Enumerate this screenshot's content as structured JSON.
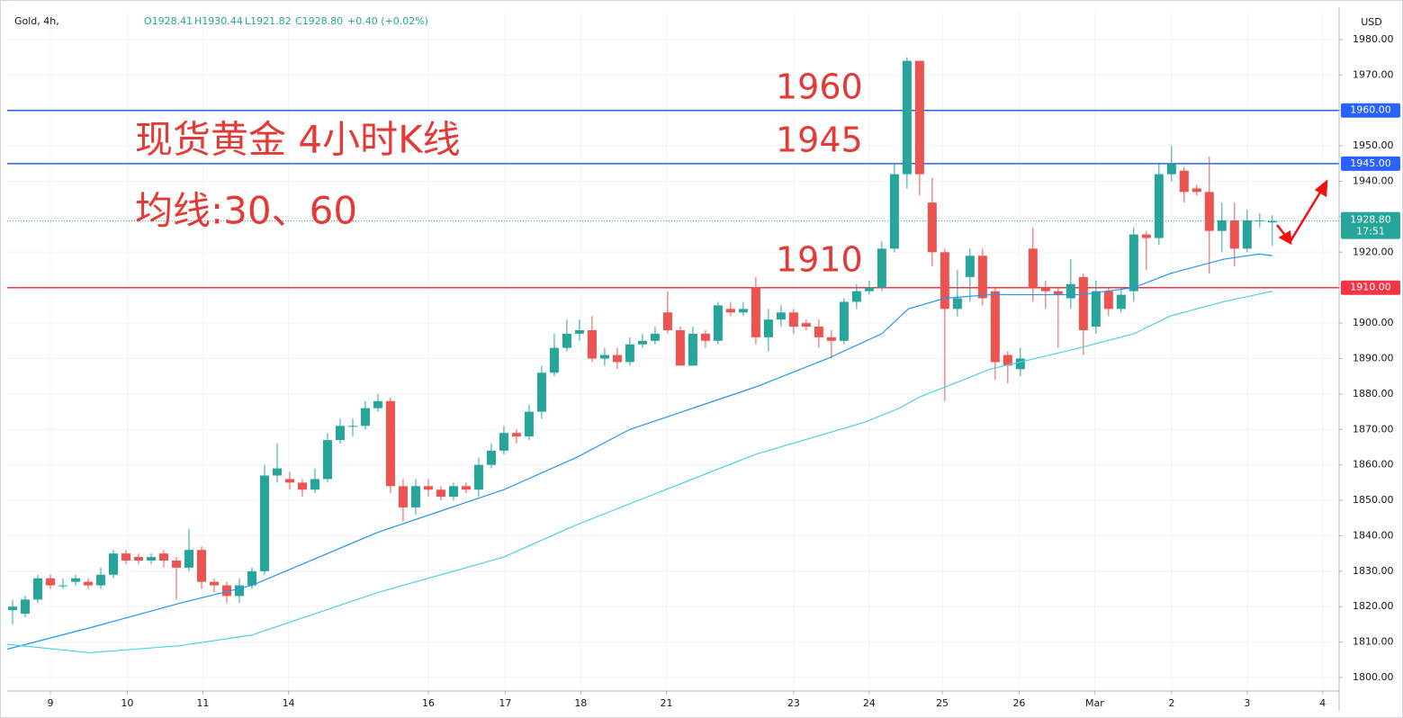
{
  "chart_data": {
    "type": "candlestick",
    "header": {
      "symbol": "Gold, 4h,",
      "open": "O1928.41",
      "high": "H1930.44",
      "low": "L1921.82",
      "close": "C1928.80",
      "change": "+0.40 (+0.02%)"
    },
    "currency": "USD",
    "annotations": [
      "现货黄金 4小时K线",
      "均线:30、60",
      "1960",
      "1945",
      "1910"
    ],
    "up_color": "#26a69a",
    "down_color": "#ef5350",
    "xlim": [
      -0.43,
      105.3
    ],
    "xticks": [
      {
        "value": 3,
        "label": "9"
      },
      {
        "value": 9.1,
        "label": "10"
      },
      {
        "value": 15.1,
        "label": "11"
      },
      {
        "value": 21.9,
        "label": "14"
      },
      {
        "value": 33,
        "label": "16"
      },
      {
        "value": 39.1,
        "label": "17"
      },
      {
        "value": 45.1,
        "label": "18"
      },
      {
        "value": 51.9,
        "label": "21"
      },
      {
        "value": 62,
        "label": "23"
      },
      {
        "value": 68,
        "label": "24"
      },
      {
        "value": 73.8,
        "label": "25"
      },
      {
        "value": 79.9,
        "label": "26"
      },
      {
        "value": 85.9,
        "label": "Mar"
      },
      {
        "value": 92,
        "label": "2"
      },
      {
        "value": 98,
        "label": "3"
      },
      {
        "value": 104,
        "label": "4"
      }
    ],
    "ylim": [
      1796.2,
      1987.6
    ],
    "yticks": [
      {
        "value": 1800,
        "label": "1800.00"
      },
      {
        "value": 1810,
        "label": "1810.00"
      },
      {
        "value": 1820,
        "label": "1820.00"
      },
      {
        "value": 1830,
        "label": "1830.00"
      },
      {
        "value": 1840,
        "label": "1840.00"
      },
      {
        "value": 1850,
        "label": "1850.00"
      },
      {
        "value": 1860,
        "label": "1860.00"
      },
      {
        "value": 1870,
        "label": "1870.00"
      },
      {
        "value": 1880,
        "label": "1880.00"
      },
      {
        "value": 1890,
        "label": "1890.00"
      },
      {
        "value": 1900,
        "label": "1900.00"
      },
      {
        "value": 1910,
        "label": "1910.00"
      },
      {
        "value": 1920,
        "label": "1920.00"
      },
      {
        "value": 1930,
        "label": "1930.00"
      },
      {
        "value": 1940,
        "label": "1940.00"
      },
      {
        "value": 1950,
        "label": "1950.00"
      },
      {
        "value": 1960,
        "label": "1960.00"
      },
      {
        "value": 1970,
        "label": "1970.00"
      },
      {
        "value": 1980,
        "label": "1980.00"
      }
    ],
    "grid": true,
    "open": [
      1819,
      1818,
      1822,
      1828,
      1826,
      1827,
      1827,
      1826,
      1829,
      1835,
      1834,
      1833,
      1835,
      1833,
      1831,
      1836,
      1827,
      1826,
      1823,
      1826,
      1830,
      1857,
      1856,
      1855,
      1853,
      1856,
      1867,
      1871,
      1871,
      1876,
      1878,
      1854,
      1848,
      1854,
      1853,
      1851,
      1854,
      1853,
      1860,
      1864,
      1869,
      1868,
      1875,
      1886,
      1893,
      1897,
      1898,
      1890,
      1891,
      1889,
      1894,
      1895,
      1903,
      1898,
      1888,
      1897,
      1895,
      1904,
      1903,
      1910,
      1896,
      1901,
      1903,
      1900,
      1899,
      1896,
      1895,
      1906,
      1909,
      1910,
      1921,
      1942,
      1974,
      1934,
      1920,
      1904,
      1913,
      1919,
      1909,
      1891,
      1887,
      1921,
      1910,
      1909,
      1907,
      1913,
      1899,
      1909,
      1904,
      1909,
      1925,
      1924,
      1942,
      1943,
      1938,
      1937,
      1926,
      1929,
      1921,
      1929,
      1928.41
    ],
    "high": [
      1822,
      1823,
      1829,
      1829,
      1828,
      1829,
      1828,
      1831,
      1836,
      1836,
      1835,
      1835,
      1836,
      1834,
      1842,
      1837,
      1828,
      1827,
      1828,
      1831,
      1860,
      1866,
      1858,
      1856,
      1859,
      1869,
      1873,
      1873,
      1878,
      1880,
      1879,
      1856,
      1856,
      1856,
      1854,
      1855,
      1855,
      1862,
      1866,
      1871,
      1870,
      1877,
      1888,
      1897,
      1901,
      1901,
      1902,
      1893,
      1893,
      1896,
      1897,
      1899,
      1909,
      1899,
      1899,
      1898,
      1906,
      1906,
      1906,
      1913,
      1904,
      1905,
      1904,
      1901,
      1901,
      1898,
      1907,
      1911,
      1912,
      1923,
      1945,
      1975,
      1974,
      1941,
      1921,
      1915,
      1921,
      1921,
      1910,
      1892,
      1893,
      1927,
      1912,
      1910,
      1918,
      1914,
      1912,
      1910,
      1910,
      1927,
      1926,
      1945,
      1950,
      1944,
      1939,
      1947,
      1934,
      1934,
      1932,
      1931,
      1930.44
    ],
    "low": [
      1815,
      1817,
      1821,
      1825,
      1825,
      1826,
      1825,
      1825,
      1828,
      1832,
      1832,
      1832,
      1831,
      1822,
      1830,
      1825,
      1824,
      1821,
      1821,
      1825,
      1829,
      1855,
      1853,
      1851,
      1852,
      1855,
      1866,
      1868,
      1870,
      1875,
      1852,
      1844,
      1846,
      1851,
      1850,
      1850,
      1852,
      1851,
      1859,
      1863,
      1866,
      1867,
      1873,
      1885,
      1892,
      1895,
      1889,
      1888,
      1887,
      1888,
      1893,
      1894,
      1897,
      1888,
      1888,
      1893,
      1894,
      1902,
      1902,
      1894,
      1892,
      1899,
      1897,
      1898,
      1893,
      1890,
      1894,
      1904,
      1908,
      1909,
      1920,
      1938,
      1936,
      1916,
      1878,
      1902,
      1906,
      1905,
      1884,
      1883,
      1885,
      1906,
      1904,
      1893,
      1904,
      1891,
      1897,
      1902,
      1903,
      1906,
      1915,
      1922,
      1940,
      1934,
      1936,
      1914,
      1920,
      1916,
      1920,
      1927,
      1921.82
    ],
    "close": [
      1820,
      1822,
      1828,
      1826,
      1826,
      1828,
      1826,
      1829,
      1835,
      1833,
      1833,
      1834,
      1833,
      1831,
      1836,
      1827,
      1826,
      1823,
      1826,
      1830,
      1857,
      1859,
      1855,
      1853,
      1856,
      1867,
      1871,
      1871,
      1876,
      1878,
      1854,
      1848,
      1854,
      1853,
      1851,
      1854,
      1853,
      1860,
      1864,
      1869,
      1868,
      1875,
      1886,
      1893,
      1897,
      1898,
      1890,
      1891,
      1889,
      1894,
      1895,
      1897,
      1898,
      1888,
      1897,
      1895,
      1905,
      1903,
      1904,
      1896,
      1901,
      1903,
      1899,
      1899,
      1896,
      1895,
      1906,
      1909,
      1910,
      1921,
      1942,
      1974,
      1942,
      1920,
      1904,
      1907,
      1919,
      1907,
      1889,
      1888,
      1890,
      1910,
      1909,
      1908,
      1911,
      1898,
      1909,
      1904,
      1908,
      1925,
      1924,
      1942,
      1945,
      1937,
      1937,
      1926,
      1929,
      1921,
      1929,
      1929,
      1928.8
    ],
    "ma_lines": [
      {
        "color": "#2196f3",
        "x": [
          -0.43,
          6.1,
          13.3,
          19,
          29,
          39,
          44.7,
          49,
          59,
          64.7,
          69,
          71.1,
          74,
          77.6,
          84.7,
          89,
          91.9,
          96.1,
          99,
          100
        ],
        "values": [
          1808,
          1814,
          1821,
          1826,
          1841,
          1853,
          1862,
          1870,
          1882,
          1890,
          1897,
          1904,
          1907,
          1908,
          1908,
          1910,
          1914,
          1918,
          1919.5,
          1919
        ]
      },
      {
        "color": "#4dd0e1",
        "x": [
          -0.43,
          6.1,
          13.3,
          19,
          29,
          39,
          44.7,
          50.4,
          59,
          67.6,
          70.4,
          71.9,
          77.6,
          84.7,
          89,
          91.9,
          96.1,
          100
        ],
        "values": [
          1809.4,
          1807,
          1809,
          1812,
          1824,
          1834,
          1843,
          1851,
          1863,
          1872,
          1876,
          1879,
          1887,
          1893,
          1897,
          1902,
          1906,
          1909
        ]
      }
    ],
    "horizontal_lines": [
      {
        "value": 1960,
        "label": "1960.00",
        "color": "#2962ff"
      },
      {
        "value": 1945,
        "label": "1945.00",
        "color": "#2962ff"
      },
      {
        "value": 1910,
        "label": "1910.00",
        "color": "#f23645"
      }
    ],
    "last_price": {
      "value": 1928.8,
      "label": "1928.80",
      "countdown": "17:51",
      "color": "#26a69a"
    }
  }
}
